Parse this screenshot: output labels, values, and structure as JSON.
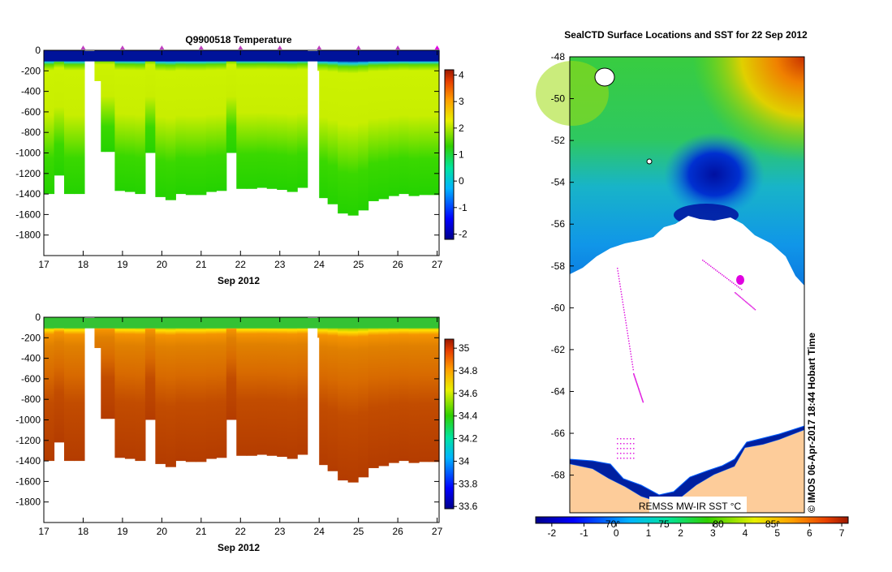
{
  "chart_data": [
    {
      "type": "heatmap",
      "title": "Q9900518  Temperature",
      "xlabel": "Sep 2012",
      "ylabel": "",
      "x_ticks": [
        "17",
        "18",
        "19",
        "20",
        "21",
        "22",
        "23",
        "24",
        "25",
        "26",
        "27"
      ],
      "y_ticks": [
        "0",
        "-200",
        "-400",
        "-600",
        "-800",
        "-1000",
        "-1200",
        "-1400",
        "-1600",
        "-1800"
      ],
      "xlim": [
        17,
        27.05
      ],
      "ylim": [
        -2000,
        0
      ],
      "colorbar_ticks": [
        "4",
        "3",
        "2",
        "1",
        "0",
        "-1",
        "-2"
      ],
      "colorbar_range": [
        -2.2,
        4.2
      ],
      "profile_markers": [
        18,
        19,
        20,
        21,
        22,
        23,
        24,
        25,
        26,
        27
      ]
    },
    {
      "type": "heatmap",
      "title": "",
      "xlabel": "Sep 2012",
      "ylabel": "",
      "x_ticks": [
        "17",
        "18",
        "19",
        "20",
        "21",
        "22",
        "23",
        "24",
        "25",
        "26",
        "27"
      ],
      "y_ticks": [
        "0",
        "-200",
        "-400",
        "-600",
        "-800",
        "-1000",
        "-1200",
        "-1400",
        "-1600",
        "-1800"
      ],
      "xlim": [
        17,
        27.05
      ],
      "ylim": [
        -2000,
        0
      ],
      "colorbar_ticks": [
        "35",
        "34.8",
        "34.6",
        "34.4",
        "34.2",
        "34",
        "33.8",
        "33.6"
      ],
      "colorbar_range": [
        33.58,
        35.08
      ]
    },
    {
      "type": "heatmap",
      "title": "SealCTD Surface Locations and SST for 22 Sep 2012",
      "y_ticks": [
        "-48",
        "-50",
        "-52",
        "-54",
        "-56",
        "-58",
        "-60",
        "-62",
        "-64",
        "-66",
        "-68"
      ],
      "ylim": [
        -69.8,
        -48
      ],
      "map_labels": {
        "sst_source": "REMSS MW-IR SST °C",
        "lon_labels": [
          "70°",
          "75",
          "80",
          "85°"
        ],
        "credit": "© IMOS 06-Apr-2017 18:44 Hobart Time"
      },
      "colorbar_ticks": [
        "-2",
        "-1",
        "0",
        "1",
        "2",
        "3",
        "4",
        "5",
        "6",
        "7"
      ],
      "colorbar_range": [
        -2.5,
        7.2
      ]
    }
  ]
}
